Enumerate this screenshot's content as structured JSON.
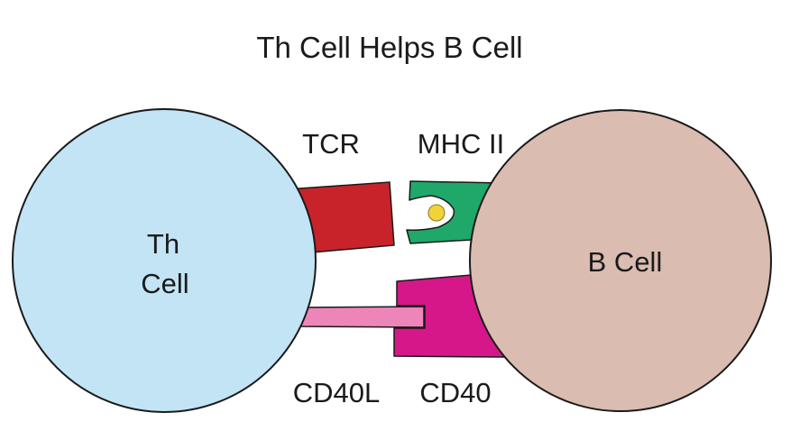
{
  "title": "Th Cell Helps B Cell",
  "th_cell": {
    "label_line1": "Th",
    "label_line2": "Cell",
    "color": "#c2e4f5"
  },
  "b_cell": {
    "label": "B Cell",
    "color": "#dbbcb0"
  },
  "molecules": {
    "tcr": {
      "label": "TCR",
      "color": "#c8232a"
    },
    "mhc_ii": {
      "label": "MHC II",
      "color": "#1fa86a"
    },
    "antigen": {
      "color": "#f2d23a"
    },
    "cd40l": {
      "label": "CD40L",
      "color": "#ee85b9"
    },
    "cd40": {
      "label": "CD40",
      "color": "#d6178a"
    }
  }
}
